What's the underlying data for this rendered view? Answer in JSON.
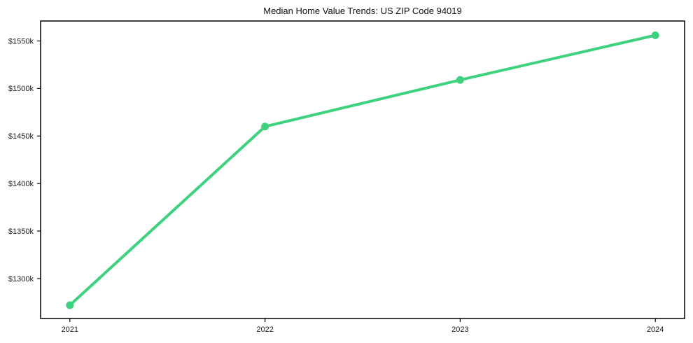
{
  "chart_data": {
    "type": "line",
    "title": "Median Home Value Trends: US ZIP Code 94019",
    "x": [
      2021,
      2022,
      2023,
      2024
    ],
    "x_tick_labels": [
      "2021",
      "2022",
      "2023",
      "2024"
    ],
    "series": [
      {
        "name": "median-home-value",
        "values_k": [
          1272,
          1460,
          1509,
          1556
        ]
      }
    ],
    "y_ticks": [
      {
        "value": 1550,
        "label": "$1550k"
      },
      {
        "value": 1500,
        "label": "$1500k"
      },
      {
        "value": 1450,
        "label": "$1450k"
      },
      {
        "value": 1400,
        "label": "$1400k"
      },
      {
        "value": 1350,
        "label": "$1350k"
      },
      {
        "value": 1300,
        "label": "$1300k"
      }
    ],
    "xlim": [
      2020.85,
      2024.15
    ],
    "ylim_k": [
      1258,
      1571
    ],
    "grid": false,
    "legend_position": "none",
    "line_color": "#3ed17e",
    "marker": "circle",
    "frame_color": "#000000",
    "tick_color": "#000000",
    "text_color": "#1a1a1a",
    "background_color": "#ffffff"
  }
}
